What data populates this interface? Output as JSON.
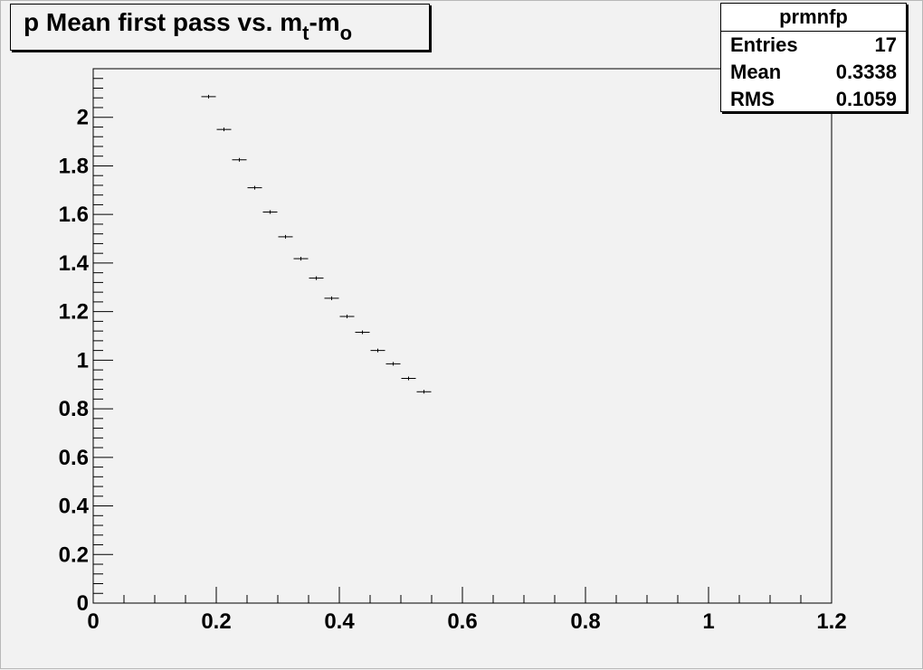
{
  "title": {
    "prefix": "p Mean first pass vs. m",
    "sub1": "t",
    "middle": "-m",
    "sub2": "o"
  },
  "stats": {
    "name": "prmnfp",
    "rows": [
      {
        "label": "Entries",
        "value": "17"
      },
      {
        "label": "Mean",
        "value": "0.3338"
      },
      {
        "label": "RMS",
        "value": "0.1059"
      }
    ]
  },
  "colors": {
    "background": "#f2f2f2",
    "frame": "#000000",
    "marker": "#000000",
    "stats_fill": "#ffffff"
  },
  "chart_data": {
    "type": "scatter",
    "style": "profile histogram with error bars",
    "title": "p Mean first pass vs. m_t-m_o",
    "xlabel": "",
    "ylabel": "",
    "xlim": [
      0,
      1.2
    ],
    "ylim": [
      0,
      2.2
    ],
    "grid": false,
    "legend": "none",
    "bin_width": 0.025,
    "x_ticks": [
      0,
      0.2,
      0.4,
      0.6,
      0.8,
      1,
      1.2
    ],
    "x_tick_labels": [
      "0",
      "0.2",
      "0.4",
      "0.6",
      "0.8",
      "1",
      "1.2"
    ],
    "y_ticks": [
      0,
      0.2,
      0.4,
      0.6,
      0.8,
      1,
      1.2,
      1.4,
      1.6,
      1.8,
      2
    ],
    "y_tick_labels": [
      "0",
      "0.2",
      "0.4",
      "0.6",
      "0.8",
      "1",
      "1.2",
      "1.4",
      "1.6",
      "1.8",
      "2"
    ],
    "x": [
      0.1875,
      0.2125,
      0.2375,
      0.2625,
      0.2875,
      0.3125,
      0.3375,
      0.3625,
      0.3875,
      0.4125,
      0.4375,
      0.4625,
      0.4875,
      0.5125,
      0.5375
    ],
    "values": [
      2.085,
      1.95,
      1.825,
      1.71,
      1.61,
      1.508,
      1.418,
      1.338,
      1.255,
      1.18,
      1.115,
      1.04,
      0.985,
      0.925,
      0.87
    ]
  }
}
